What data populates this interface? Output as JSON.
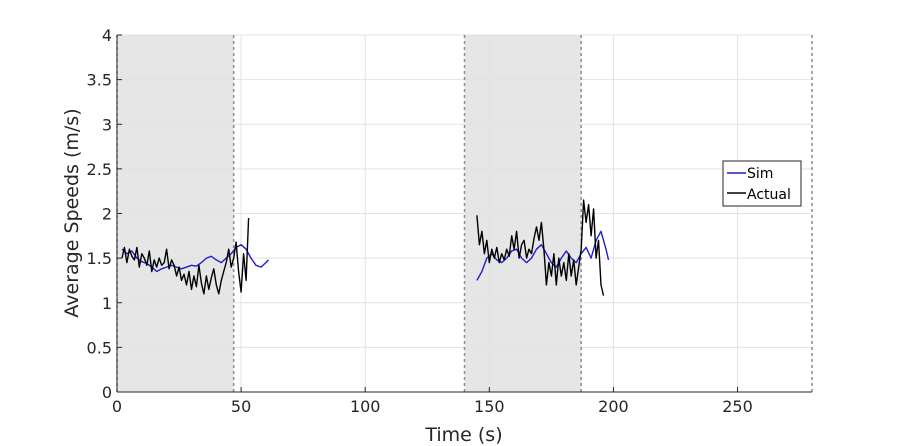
{
  "chart_data": {
    "type": "line",
    "title": "",
    "xlabel": "Time (s)",
    "ylabel": "Average Speeds (m/s)",
    "xlim": [
      0,
      280
    ],
    "ylim": [
      0,
      4
    ],
    "xticks": [
      0,
      50,
      100,
      150,
      200,
      250
    ],
    "yticks": [
      0,
      0.5,
      1,
      1.5,
      2,
      2.5,
      3,
      3.5,
      4
    ],
    "xtick_labels": [
      "0",
      "50",
      "100",
      "150",
      "200",
      "250"
    ],
    "ytick_labels": [
      "0",
      "0.5",
      "1",
      "1.5",
      "2",
      "2.5",
      "3",
      "3.5",
      "4"
    ],
    "grid": true,
    "legend_position": "right",
    "shaded_regions": [
      [
        0,
        47
      ],
      [
        140,
        187
      ]
    ],
    "vertical_dashed_lines": [
      0,
      47,
      140,
      187,
      280
    ],
    "colors": {
      "sim": "#1f1fcc",
      "actual": "#000000",
      "shade": "#e6e6e6"
    },
    "series": [
      {
        "name": "Sim",
        "color": "#1f1fcc",
        "segments": [
          {
            "x": [
              2,
              4,
              6,
              8,
              10,
              12,
              14,
              16,
              18,
              20,
              22,
              24,
              26,
              28,
              30,
              32,
              34,
              36,
              38,
              40,
              42,
              44,
              46,
              48,
              50,
              52,
              54,
              56,
              58,
              60,
              61
            ],
            "y": [
              1.6,
              1.55,
              1.58,
              1.5,
              1.46,
              1.44,
              1.4,
              1.35,
              1.38,
              1.4,
              1.42,
              1.4,
              1.38,
              1.4,
              1.42,
              1.41,
              1.45,
              1.5,
              1.52,
              1.48,
              1.45,
              1.5,
              1.55,
              1.62,
              1.65,
              1.6,
              1.5,
              1.42,
              1.4,
              1.45,
              1.48
            ]
          },
          {
            "x": [
              145,
              147,
              149,
              151,
              153,
              155,
              157,
              159,
              161,
              163,
              165,
              167,
              169,
              171,
              173,
              175,
              177,
              179,
              181,
              183,
              185,
              187,
              189,
              191,
              193,
              195,
              197,
              198
            ],
            "y": [
              1.25,
              1.35,
              1.5,
              1.55,
              1.48,
              1.45,
              1.5,
              1.58,
              1.6,
              1.5,
              1.45,
              1.5,
              1.6,
              1.65,
              1.55,
              1.45,
              1.4,
              1.5,
              1.58,
              1.5,
              1.45,
              1.55,
              1.62,
              1.5,
              1.7,
              1.8,
              1.6,
              1.48
            ]
          }
        ]
      },
      {
        "name": "Actual",
        "color": "#000000",
        "segments": [
          {
            "x": [
              2,
              3,
              4,
              5,
              6,
              7,
              8,
              9,
              10,
              11,
              12,
              13,
              14,
              15,
              16,
              17,
              18,
              19,
              20,
              21,
              22,
              23,
              24,
              25,
              26,
              27,
              28,
              29,
              30,
              31,
              32,
              33,
              34,
              35,
              36,
              37,
              38,
              39,
              40,
              41,
              42,
              43,
              44,
              45,
              46,
              47,
              48,
              49,
              50,
              51,
              52,
              53
            ],
            "y": [
              1.5,
              1.62,
              1.45,
              1.6,
              1.52,
              1.48,
              1.62,
              1.4,
              1.55,
              1.5,
              1.42,
              1.58,
              1.35,
              1.48,
              1.4,
              1.5,
              1.42,
              1.45,
              1.6,
              1.38,
              1.48,
              1.42,
              1.3,
              1.4,
              1.25,
              1.32,
              1.2,
              1.35,
              1.15,
              1.3,
              1.18,
              1.42,
              1.22,
              1.1,
              1.3,
              1.15,
              1.28,
              1.38,
              1.2,
              1.1,
              1.25,
              1.35,
              1.45,
              1.6,
              1.4,
              1.5,
              1.68,
              1.35,
              1.12,
              1.55,
              1.25,
              1.95
            ]
          },
          {
            "x": [
              145,
              146,
              147,
              148,
              149,
              150,
              151,
              152,
              153,
              154,
              155,
              156,
              157,
              158,
              159,
              160,
              161,
              162,
              163,
              164,
              165,
              166,
              167,
              168,
              169,
              170,
              171,
              172,
              173,
              174,
              175,
              176,
              177,
              178,
              179,
              180,
              181,
              182,
              183,
              184,
              185,
              186,
              187,
              188,
              189,
              190,
              191,
              192,
              193,
              194,
              195,
              196
            ],
            "y": [
              1.98,
              1.65,
              1.8,
              1.55,
              1.7,
              1.45,
              1.6,
              1.5,
              1.62,
              1.45,
              1.55,
              1.48,
              1.6,
              1.52,
              1.75,
              1.6,
              1.8,
              1.5,
              1.65,
              1.7,
              1.5,
              1.6,
              1.55,
              1.72,
              1.85,
              1.7,
              1.9,
              1.6,
              1.2,
              1.45,
              1.3,
              1.55,
              1.2,
              1.5,
              1.3,
              1.45,
              1.25,
              1.55,
              1.3,
              1.48,
              1.2,
              1.4,
              1.6,
              2.15,
              1.9,
              2.1,
              1.75,
              2.05,
              1.5,
              1.7,
              1.2,
              1.08
            ]
          }
        ]
      }
    ]
  }
}
